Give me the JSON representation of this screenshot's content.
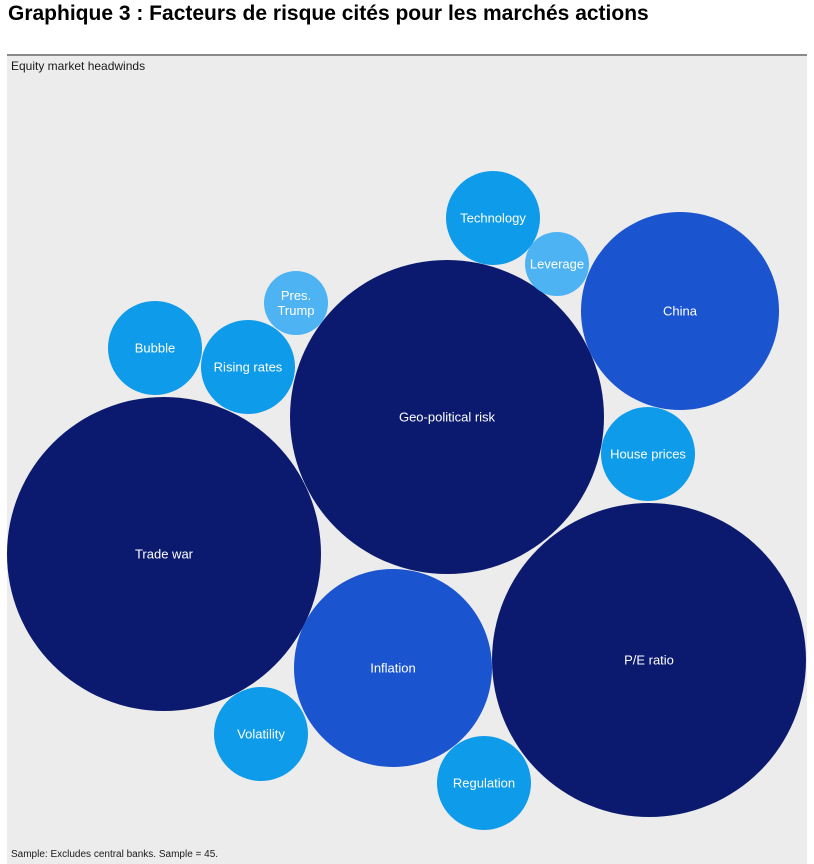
{
  "page": {
    "title": "Graphique 3 : Facteurs de risque cités pour les marchés actions"
  },
  "chart_data": {
    "type": "bubble",
    "title": "Equity market headwinds",
    "footnote": "Sample: Excludes central banks. Sample = 45.",
    "legend": "none",
    "grid": false,
    "colors": {
      "dark": "#0b1a6e",
      "medium": "#1a54cf",
      "bright": "#0d9bea",
      "light": "#4db3f2"
    },
    "bubbles": [
      {
        "label": [
          "Trade war"
        ],
        "tier": "dark"
      },
      {
        "label": [
          "Geo-political risk"
        ],
        "tier": "dark"
      },
      {
        "label": [
          "P/E ratio"
        ],
        "tier": "dark"
      },
      {
        "label": [
          "China"
        ],
        "tier": "medium"
      },
      {
        "label": [
          "Inflation"
        ],
        "tier": "medium"
      },
      {
        "label": [
          "Technology"
        ],
        "tier": "bright"
      },
      {
        "label": [
          "Bubble"
        ],
        "tier": "bright"
      },
      {
        "label": [
          "Rising rates"
        ],
        "tier": "bright"
      },
      {
        "label": [
          "House prices"
        ],
        "tier": "bright"
      },
      {
        "label": [
          "Volatility"
        ],
        "tier": "bright"
      },
      {
        "label": [
          "Regulation"
        ],
        "tier": "bright"
      },
      {
        "label": [
          "Leverage"
        ],
        "tier": "light"
      },
      {
        "label": [
          "Pres.",
          "Trump"
        ],
        "tier": "light"
      }
    ]
  }
}
